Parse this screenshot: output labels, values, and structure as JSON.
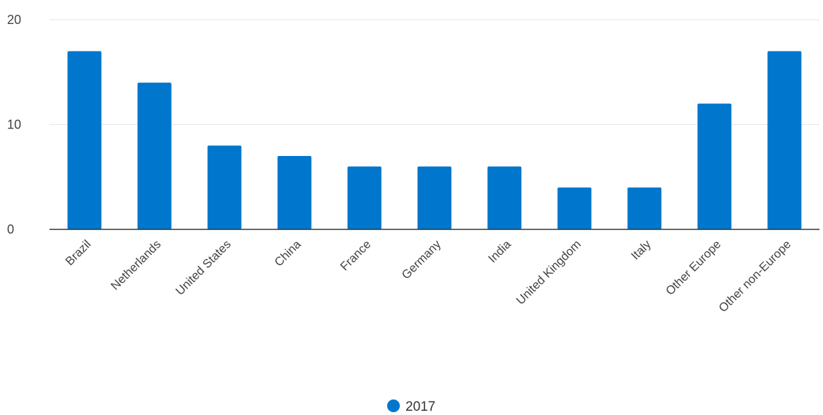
{
  "chart_data": {
    "type": "bar",
    "categories": [
      "Brazil",
      "Netherlands",
      "United States",
      "China",
      "France",
      "Germany",
      "India",
      "United Kingdom",
      "Italy",
      "Other Europe",
      "Other non-Europe"
    ],
    "series": [
      {
        "name": "2017",
        "values": [
          17,
          14,
          8,
          7,
          6,
          6,
          6,
          4,
          4,
          12,
          17
        ]
      }
    ],
    "ylim": [
      0,
      20
    ],
    "yticks": [
      0,
      10,
      20
    ],
    "grid": true,
    "legend_position": "bottom-center",
    "colors": {
      "bar": "#0077cc",
      "grid": "#e6e6e6",
      "axis": "#333333"
    }
  }
}
